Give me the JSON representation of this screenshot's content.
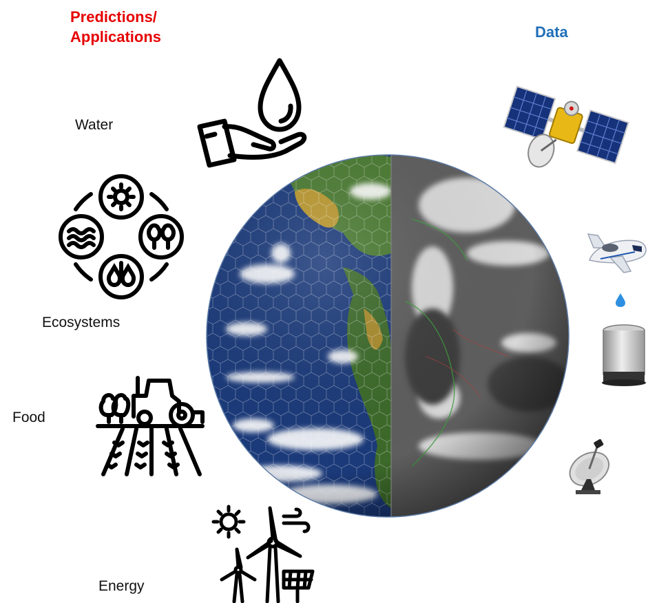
{
  "headings": {
    "predictions_line1": "Predictions/",
    "predictions_line2": "Applications",
    "data": "Data"
  },
  "applications": [
    {
      "label": "Water",
      "icon": "water-drop-hand-icon"
    },
    {
      "label": "Ecosystems",
      "icon": "ecosystems-cycle-icon"
    },
    {
      "label": "Food",
      "icon": "tractor-field-icon"
    },
    {
      "label": "Energy",
      "icon": "renewable-energy-icon"
    }
  ],
  "data_sources": [
    {
      "icon": "satellite-icon"
    },
    {
      "icon": "aircraft-icon"
    },
    {
      "icon": "rain-drop-icon"
    },
    {
      "icon": "rain-gauge-icon"
    },
    {
      "icon": "radar-dish-icon"
    }
  ],
  "globe": {
    "left_half": "true-color-earth-with-hexagonal-grid",
    "right_half": "infrared-satellite-earth"
  },
  "colors": {
    "predictions_heading": "#e60000",
    "data_heading": "#1f6fb8",
    "ocean": "#1b3a7a",
    "land": "#4a7a32"
  }
}
